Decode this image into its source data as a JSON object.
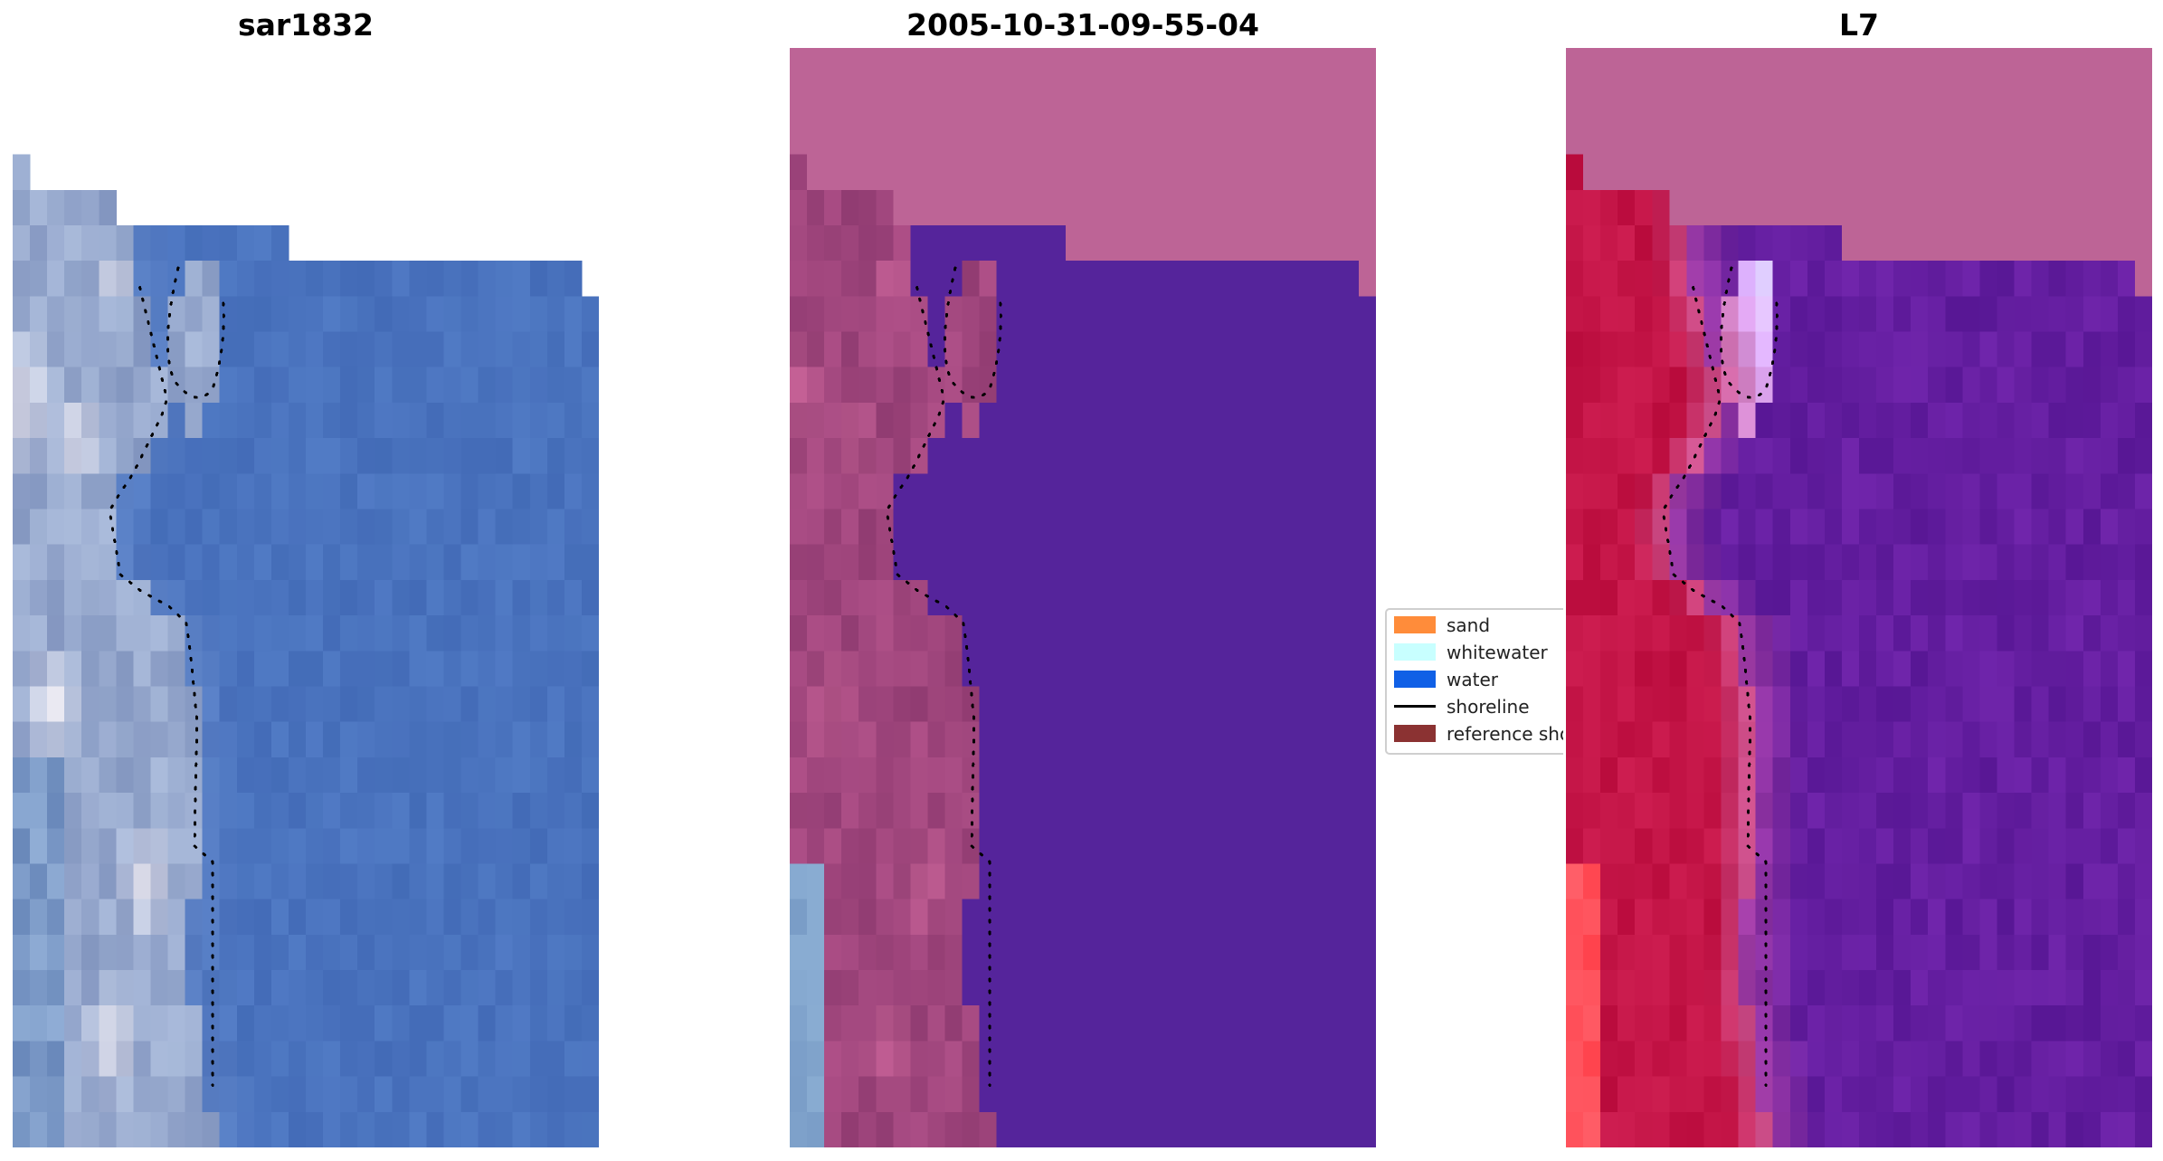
{
  "panels": [
    {
      "title": "sar1832",
      "style": "rgb"
    },
    {
      "title": "2005-10-31-09-55-04",
      "style": "classified"
    },
    {
      "title": "L7",
      "style": "mndwi"
    }
  ],
  "legend": {
    "items": [
      {
        "label": "sand",
        "kind": "patch",
        "color": "#ff8c3a"
      },
      {
        "label": "whitewater",
        "kind": "patch",
        "color": "#c8ffff"
      },
      {
        "label": "water",
        "kind": "patch",
        "color": "#1060e6"
      },
      {
        "label": "shoreline",
        "kind": "line",
        "color": "#000000"
      },
      {
        "label": "reference shoreline",
        "kind": "patch",
        "color": "#8b3232"
      }
    ]
  },
  "colors": {
    "no_data": "#bd6496",
    "water_class": "#55249b",
    "sea_rgb": "#4a73bf",
    "land_rgb": "#a7b6d6"
  }
}
